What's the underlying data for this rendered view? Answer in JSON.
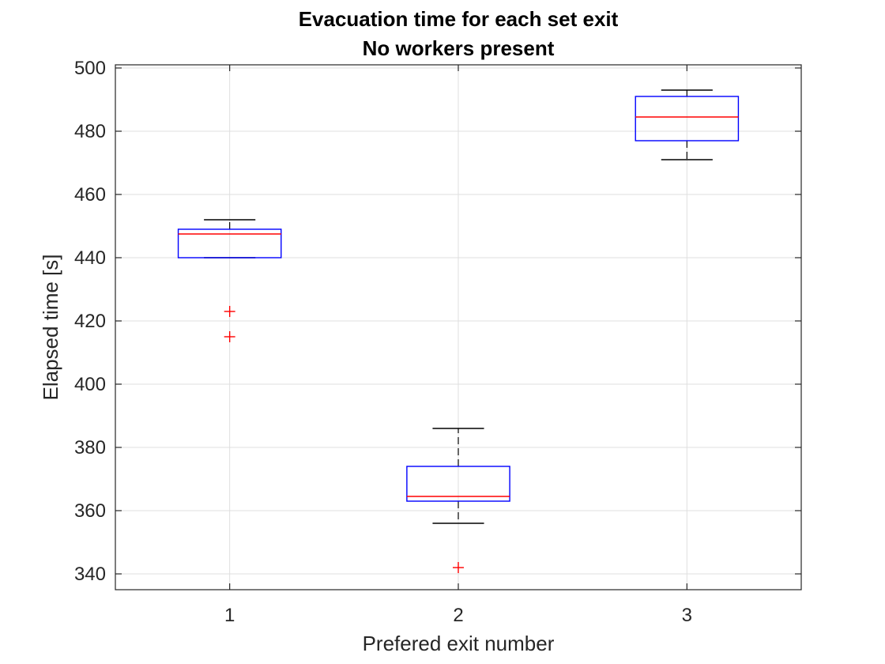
{
  "chart_data": {
    "type": "box",
    "title": [
      "Evacuation time for each set exit",
      "No workers present"
    ],
    "xlabel": "Prefered exit number",
    "ylabel": "Elapsed time [s]",
    "categories": [
      "1",
      "2",
      "3"
    ],
    "xlim": [
      0.5,
      3.5
    ],
    "ylim": [
      335,
      501
    ],
    "yticks": [
      340,
      360,
      380,
      400,
      420,
      440,
      460,
      480,
      500
    ],
    "grid": true,
    "box_color": "#0000ff",
    "median_color": "#ff0000",
    "whisker_color": "#000000",
    "outlier_color": "#ff0000",
    "boxes": [
      {
        "category": "1",
        "whisker_low": 440,
        "q1": 440,
        "median": 447.5,
        "q3": 449,
        "whisker_high": 452,
        "outliers": [
          423,
          415
        ]
      },
      {
        "category": "2",
        "whisker_low": 356,
        "q1": 363,
        "median": 364.5,
        "q3": 374,
        "whisker_high": 386,
        "outliers": [
          342
        ]
      },
      {
        "category": "3",
        "whisker_low": 471,
        "q1": 477,
        "median": 484.5,
        "q3": 491,
        "whisker_high": 493,
        "outliers": []
      }
    ]
  }
}
